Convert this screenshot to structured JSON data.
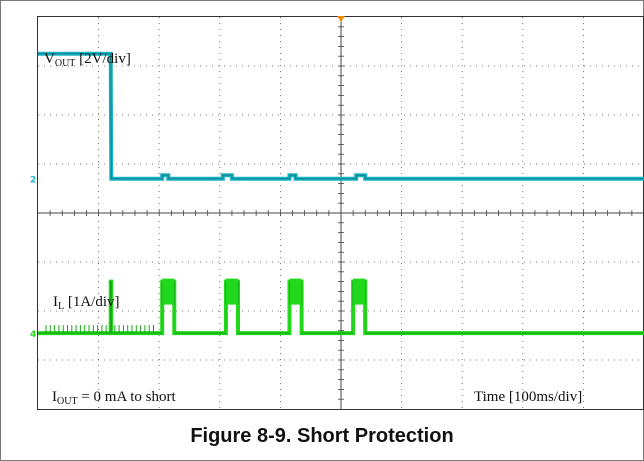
{
  "caption": "Figure 8-9. Short Protection",
  "annotations": {
    "vout_label_main": "V",
    "vout_label_sub": "OUT",
    "vout_label_scale": " [2V/div]",
    "il_label_main": "I",
    "il_label_sub": "L",
    "il_label_scale": " [1A/div]",
    "iout_label_main": "I",
    "iout_label_sub": "OUT",
    "iout_label_rest": " = 0 mA to short",
    "time_label": "Time [100ms/div]",
    "ch2_marker": "2",
    "ch4_marker": "4"
  },
  "colors": {
    "ch2_cyan": "#19b4c4",
    "ch4_green": "#22d81c",
    "grid": "#555555",
    "trigger_marker": "#f08a00"
  },
  "chart_data": {
    "type": "line",
    "title": "Figure 8-9. Short Protection",
    "xlabel": "Time [100ms/div]",
    "x_divisions": 10,
    "y_divisions": 8,
    "grid": true,
    "series": [
      {
        "name": "VOUT [2V/div]",
        "units": "divisions above ch2 ground",
        "x": [
          0,
          1.2,
          1.21,
          2.05,
          2.05,
          2.15,
          2.15,
          3.05,
          3.05,
          3.2,
          3.2,
          4.15,
          4.15,
          4.25,
          4.25,
          5.25,
          5.25,
          5.4,
          5.4,
          10
        ],
        "y": [
          2.55,
          2.55,
          0.0,
          0.0,
          0.07,
          0.07,
          0.0,
          0.0,
          0.07,
          0.07,
          0.0,
          0.0,
          0.07,
          0.07,
          0.0,
          0.0,
          0.07,
          0.07,
          0.0,
          0.0
        ]
      },
      {
        "name": "IL [1A/div]",
        "units": "divisions above ch4 ground",
        "x": [
          0,
          1.2,
          1.2,
          1.21,
          1.21,
          2.05,
          2.05,
          2.25,
          2.25,
          3.1,
          3.1,
          3.3,
          3.3,
          4.15,
          4.15,
          4.35,
          4.35,
          5.2,
          5.2,
          5.4,
          5.4,
          10
        ],
        "y": [
          0.0,
          0.0,
          1.05,
          1.05,
          0.0,
          0.0,
          1.05,
          1.05,
          0.0,
          0.0,
          1.05,
          1.05,
          0.0,
          0.0,
          1.05,
          1.05,
          0.0,
          0.0,
          1.05,
          1.05,
          0.0,
          0.0
        ]
      }
    ]
  }
}
